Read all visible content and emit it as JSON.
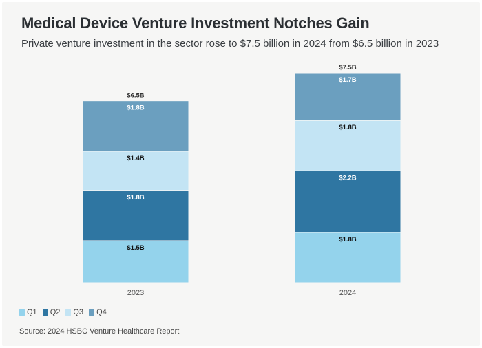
{
  "header": {
    "title": "Medical Device Venture Investment Notches Gain",
    "subtitle": "Private venture investment in the sector rose to $7.5 billion in 2024 from $6.5 billion in 2023"
  },
  "footer": {
    "source": "Source: 2024 HSBC Venture Healthcare Report"
  },
  "chart_data": {
    "type": "bar",
    "stacked": true,
    "title": "Medical Device Venture Investment Notches Gain",
    "subtitle": "Private venture investment in the sector rose to $7.5 billion in 2024 from $6.5 billion in 2023",
    "xlabel": "",
    "ylabel": "",
    "unit": "billion USD",
    "categories": [
      "2023",
      "2024"
    ],
    "totals": [
      6.5,
      7.5
    ],
    "total_labels": [
      "$6.5B",
      "$7.5B"
    ],
    "series": [
      {
        "name": "Q1",
        "color": "#94d3ec",
        "label_color": "#111111",
        "values": [
          1.5,
          1.8
        ],
        "labels": [
          "$1.5B",
          "$1.8B"
        ]
      },
      {
        "name": "Q2",
        "color": "#2f76a2",
        "label_color": "#ffffff",
        "values": [
          1.8,
          2.2
        ],
        "labels": [
          "$1.8B",
          "$2.2B"
        ]
      },
      {
        "name": "Q3",
        "color": "#c3e4f4",
        "label_color": "#111111",
        "values": [
          1.4,
          1.8
        ],
        "labels": [
          "$1.4B",
          "$1.8B"
        ]
      },
      {
        "name": "Q4",
        "color": "#6b9fbf",
        "label_color": "#ffffff",
        "values": [
          1.8,
          1.7
        ],
        "labels": [
          "$1.8B",
          "$1.7B"
        ]
      }
    ],
    "ylim": [
      0,
      7.5
    ],
    "grid": false,
    "y_axis_visible": false,
    "legend_position": "bottom-left"
  }
}
